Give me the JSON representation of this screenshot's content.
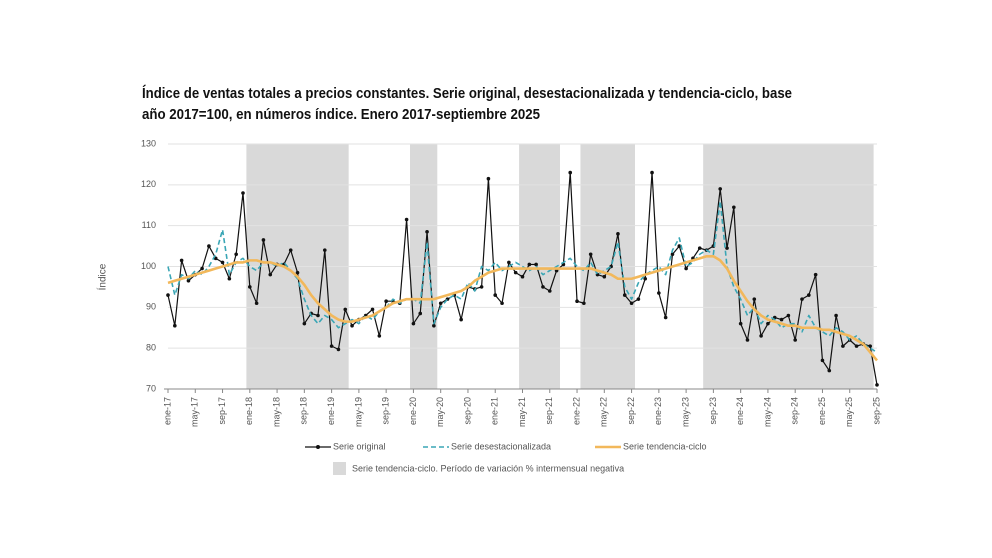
{
  "chart_data": {
    "type": "line",
    "title": [
      "Índice de ventas totales a precios constantes. Serie original, desestacionalizada y tendencia-ciclo, base",
      "año 2017=100, en números índice. Enero 2017-septiembre 2025"
    ],
    "y_label": "Índice",
    "categories": [
      "ene-17",
      null,
      null,
      null,
      "may-17",
      null,
      null,
      null,
      "sep-17",
      null,
      null,
      null,
      "ene-18",
      null,
      null,
      null,
      "may-18",
      null,
      null,
      null,
      "sep-18",
      null,
      null,
      null,
      "ene-19",
      null,
      null,
      null,
      "may-19",
      null,
      null,
      null,
      "sep-19",
      null,
      null,
      null,
      "ene-20",
      null,
      null,
      null,
      "may-20",
      null,
      null,
      null,
      "sep-20",
      null,
      null,
      null,
      "ene-21",
      null,
      null,
      null,
      "may-21",
      null,
      null,
      null,
      "sep-21",
      null,
      null,
      null,
      "ene-22",
      null,
      null,
      null,
      "may-22",
      null,
      null,
      null,
      "sep-22",
      null,
      null,
      null,
      "ene-23",
      null,
      null,
      null,
      "may-23",
      null,
      null,
      null,
      "sep-23",
      null,
      null,
      null,
      "ene-24",
      null,
      null,
      null,
      "may-24",
      null,
      null,
      null,
      "sep-24",
      null,
      null,
      null,
      "ene-25",
      null,
      null,
      null,
      "may-25",
      null,
      null,
      null,
      "sep-25"
    ],
    "series": [
      {
        "name": "Serie original",
        "color": "#111111",
        "style": "markers",
        "values": [
          93,
          85.5,
          101.5,
          96.5,
          98,
          99.5,
          105,
          102,
          101,
          97,
          103,
          118,
          95,
          91,
          106.5,
          98,
          100.5,
          100.5,
          104,
          98.5,
          86,
          88.5,
          88,
          104,
          80.5,
          79.7,
          89.5,
          85.5,
          87,
          88,
          89.5,
          83,
          91.5,
          91.5,
          91,
          111.5,
          86,
          88.5,
          108.5,
          85.5,
          91,
          92,
          93,
          87,
          95,
          94.5,
          95,
          121.5,
          93,
          91,
          101,
          98.5,
          97.5,
          100.5,
          100.5,
          95,
          94,
          99,
          100.5,
          123,
          91.5,
          91,
          103,
          98,
          97.5,
          100,
          108,
          93,
          91,
          92,
          97,
          123,
          93.5,
          87.5,
          103,
          105,
          99.5,
          102,
          104.5,
          104,
          105,
          119,
          104.5,
          114.5,
          86,
          82,
          92,
          83,
          86,
          87.5,
          87,
          88,
          82,
          92,
          93,
          98,
          77,
          74.5,
          88,
          80.5,
          82,
          80.5,
          81,
          80.5,
          71
        ]
      },
      {
        "name": "Serie desestacionalizada",
        "color": "#3aa6b5",
        "style": "dashed",
        "values": [
          100,
          93,
          98,
          97,
          99,
          98,
          100,
          103,
          109,
          98,
          101,
          102,
          100,
          99,
          101,
          101,
          100,
          101,
          99,
          97,
          92,
          88,
          86,
          88,
          87,
          85,
          86,
          87,
          86,
          88,
          87,
          89,
          90,
          92,
          91,
          92,
          92,
          91,
          106,
          86,
          90,
          92,
          93,
          92,
          96,
          94,
          100,
          99,
          101,
          99,
          100,
          101,
          100,
          99,
          100,
          98,
          99,
          100,
          101,
          102,
          100,
          99,
          101,
          98,
          99,
          100,
          106,
          95,
          92,
          96,
          98,
          99,
          100,
          98,
          104,
          107,
          100,
          101,
          103,
          104,
          103,
          116,
          100,
          95,
          92,
          88,
          90,
          86,
          88,
          87,
          85,
          86,
          86,
          84,
          88,
          85,
          84,
          83,
          85,
          84,
          82,
          83,
          81,
          80,
          79
        ]
      },
      {
        "name": "Serie tendencia-ciclo",
        "color": "#f2b85b",
        "style": "thick",
        "values": [
          96,
          96.5,
          97,
          97.5,
          98,
          98.5,
          99,
          99.5,
          100,
          100.5,
          101,
          101,
          101.5,
          101.5,
          101,
          101,
          100.5,
          100,
          99,
          97.5,
          95.5,
          93,
          91,
          89.5,
          88,
          87,
          86.5,
          86.5,
          87,
          87.5,
          88,
          89,
          90,
          91,
          91.5,
          92,
          92,
          92,
          92,
          92,
          92.5,
          93,
          93.5,
          94,
          95,
          96.5,
          97.5,
          98.5,
          99,
          99.5,
          99.5,
          99.5,
          99.5,
          99.5,
          99.5,
          99.5,
          99.5,
          99.5,
          99.5,
          99.5,
          99.5,
          99.5,
          99.5,
          99,
          98.5,
          98,
          97,
          97,
          97,
          97.5,
          98,
          98.5,
          99,
          99.5,
          100,
          100.5,
          101,
          101.5,
          102,
          102.5,
          102.5,
          101.5,
          99.5,
          96.5,
          94,
          91.5,
          89.5,
          88,
          87,
          86.5,
          86,
          85.5,
          85.5,
          85,
          85,
          85,
          84.5,
          84.5,
          84,
          83.5,
          83,
          82,
          81,
          79,
          77
        ]
      }
    ],
    "bands": [
      [
        12,
        27
      ],
      [
        36,
        40
      ],
      [
        52,
        58
      ],
      [
        61,
        69
      ],
      [
        79,
        104
      ]
    ],
    "band_color": "#d9d9d9",
    "band_label": "Serie tendencia-ciclo. Período de variación % intermensual negativa",
    "ylim": [
      70,
      130
    ],
    "yticks": [
      70,
      80,
      90,
      100,
      110,
      120,
      130
    ],
    "grid": true
  }
}
